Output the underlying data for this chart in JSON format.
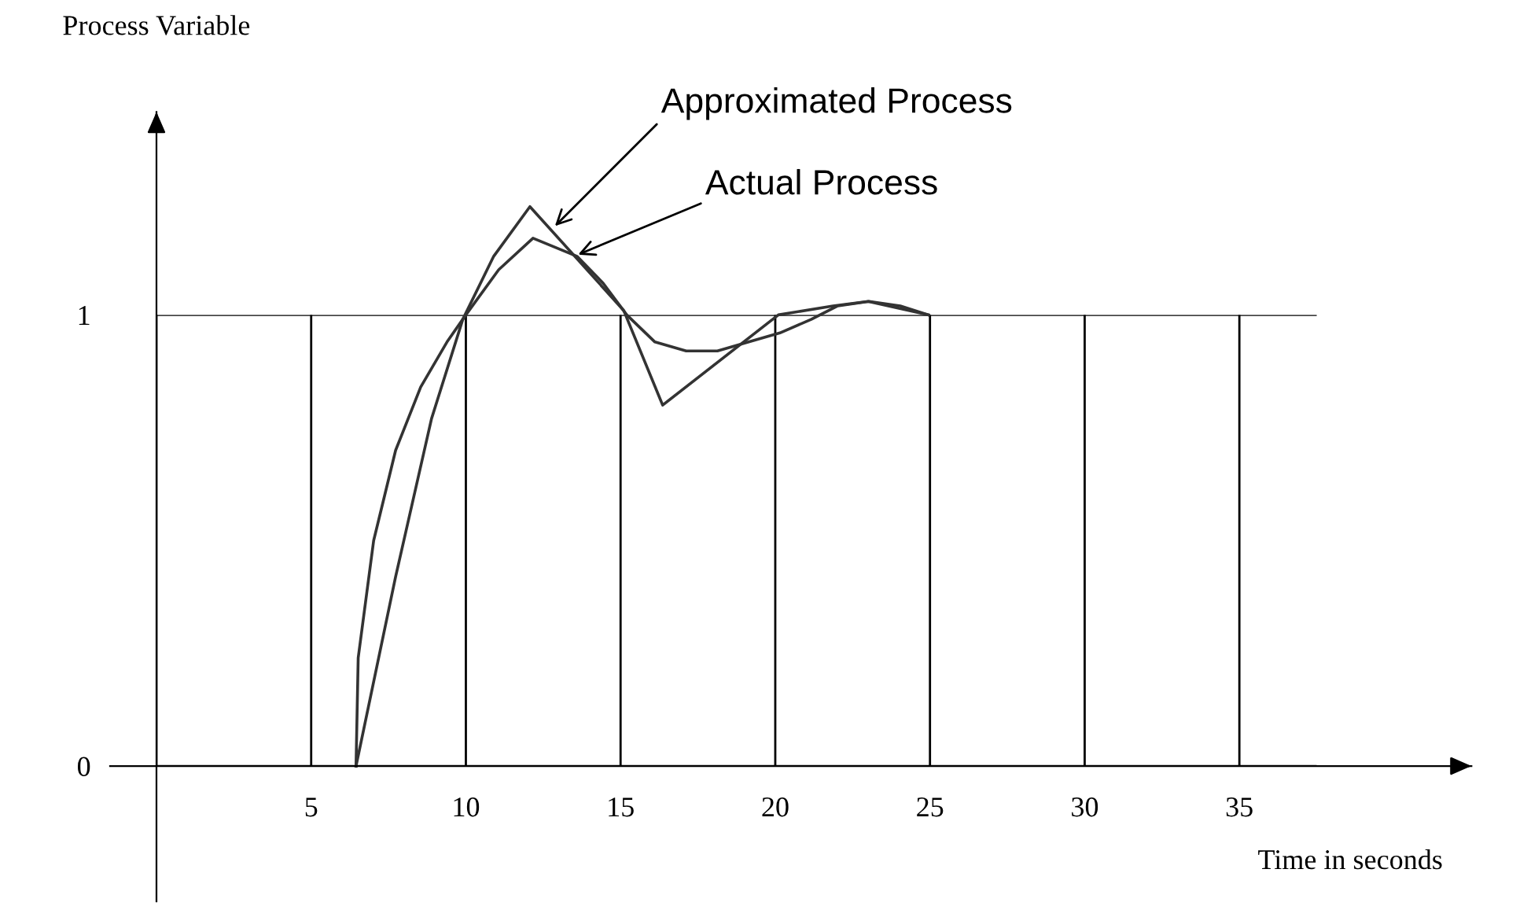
{
  "chart_data": {
    "type": "line",
    "xlabel": "Time in seconds",
    "ylabel": "Process Variable",
    "xlim": [
      -1.5,
      42.5
    ],
    "ylim": [
      -0.3,
      1.45
    ],
    "xticks": [
      {
        "value": 0,
        "label": null
      },
      5,
      10,
      15,
      20,
      25,
      30,
      35
    ],
    "yticks": [
      0,
      1
    ],
    "grid": true,
    "legend": false,
    "marker": "none",
    "line_style": "solid",
    "series": [
      {
        "color": "#333333",
        "x": [
          6.45,
          6.52,
          7.02,
          7.73,
          8.54,
          9.39,
          10.0,
          11.06,
          12.17,
          13.59,
          14.44,
          15.2,
          16.11,
          17.12,
          18.13,
          19.14,
          20.15,
          21.16,
          22.02,
          23.03,
          24.04,
          24.95
        ],
        "values": [
          0,
          0.24,
          0.5,
          0.7,
          0.84,
          0.94,
          1.0,
          1.1,
          1.17,
          1.13,
          1.07,
          1.0,
          0.94,
          0.92,
          0.92,
          0.94,
          0.96,
          0.99,
          1.02,
          1.03,
          1.02,
          1.0
        ]
      },
      {
        "color": "#333333",
        "x": [
          6.45,
          7.73,
          8.89,
          9.9,
          10.9,
          12.07,
          15.1,
          16.36,
          20.1,
          21.87,
          23.0,
          24.95
        ],
        "values": [
          0,
          0.42,
          0.77,
          0.99,
          1.13,
          1.24,
          1.01,
          0.8,
          1.0,
          1.02,
          1.03,
          1.0
        ]
      }
    ],
    "annotations": [
      {
        "text": "Approximated Process",
        "x": 12.78,
        "y": 1.19
      },
      {
        "text": "Actual Process",
        "x": 13.5,
        "y": 1.13
      }
    ]
  }
}
